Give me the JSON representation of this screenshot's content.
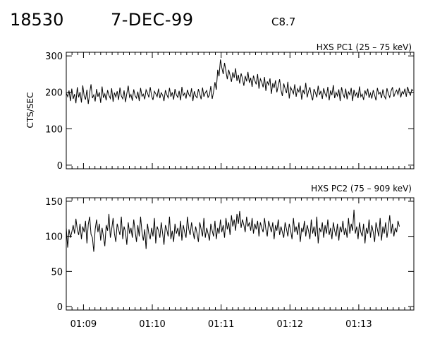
{
  "header": {
    "event_id": "18530",
    "date": "7-DEC-99",
    "goes_class": "C8.7"
  },
  "chart_data": [
    {
      "type": "line",
      "title": "HXS PC1 (25 – 75 keV)",
      "ylabel": "CTS/SEC",
      "xlabel": "",
      "ylim": [
        -10,
        310
      ],
      "xlim": [
        "01:08:45",
        "01:13:48"
      ],
      "y_ticks": [
        0,
        100,
        200,
        300
      ],
      "x_ticks": [
        "01:09",
        "01:10",
        "01:11",
        "01:12",
        "01:13"
      ],
      "x_tick_labels_shown": false,
      "grid": false,
      "series": [
        {
          "x_start": "01:08:45",
          "x_step_seconds": 1.2,
          "values": [
            198,
            188,
            205,
            176,
            210,
            182,
            195,
            170,
            214,
            186,
            201,
            172,
            219,
            190,
            180,
            207,
            168,
            198,
            222,
            184,
            193,
            175,
            209,
            188,
            200,
            171,
            216,
            185,
            196,
            178,
            206,
            192,
            183,
            211,
            174,
            199,
            187,
            203,
            179,
            213,
            190,
            182,
            205,
            173,
            197,
            218,
            186,
            194,
            177,
            208,
            191,
            184,
            202,
            176,
            212,
            189,
            195,
            181,
            207,
            198,
            186,
            214,
            190,
            179,
            203,
            196,
            188,
            210,
            184,
            199,
            192,
            176,
            206,
            194,
            185,
            212,
            188,
            200,
            180,
            209,
            193,
            186,
            204,
            178,
            215,
            191,
            198,
            183,
            207,
            194,
            188,
            211,
            176,
            203,
            190,
            185,
            209,
            195,
            181,
            213,
            188,
            199,
            205,
            186,
            193,
            217,
            182,
            201,
            228,
            207,
            262,
            244,
            290,
            268,
            250,
            281,
            258,
            236,
            262,
            247,
            229,
            255,
            240,
            266,
            231,
            248,
            224,
            252,
            238,
            218,
            245,
            230,
            256,
            226,
            240,
            215,
            246,
            232,
            222,
            250,
            210,
            237,
            228,
            214,
            242,
            204,
            230,
            220,
            238,
            196,
            225,
            212,
            233,
            200,
            218,
            236,
            206,
            190,
            224,
            210,
            198,
            229,
            183,
            214,
            205,
            196,
            222,
            188,
            210,
            201,
            218,
            180,
            207,
            195,
            226,
            186,
            203,
            214,
            191,
            178,
            209,
            199,
            186,
            218,
            193,
            204,
            182,
            211,
            196,
            188,
            215,
            178,
            205,
            192,
            220,
            184,
            200,
            190,
            208,
            176,
            214,
            196,
            186,
            210,
            181,
            201,
            193,
            212,
            176,
            207,
            190,
            199,
            184,
            216,
            188,
            195,
            179,
            205,
            193,
            210,
            185,
            198,
            183,
            206,
            192,
            178,
            212,
            195,
            200,
            184,
            208,
            190,
            182,
            211,
            196,
            186,
            204,
            214,
            188,
            199,
            206,
            194,
            212,
            186,
            202,
            196,
            210,
            188,
            215,
            200,
            192,
            208,
            204
          ]
        }
      ]
    },
    {
      "type": "line",
      "title": "HXS PC2 (75 – 909 keV)",
      "ylabel": "",
      "xlabel": "",
      "ylim": [
        -5,
        155
      ],
      "xlim": [
        "01:08:45",
        "01:13:48"
      ],
      "y_ticks": [
        0,
        50,
        100,
        150
      ],
      "x_ticks": [
        "01:09",
        "01:10",
        "01:11",
        "01:12",
        "01:13"
      ],
      "x_tick_labels_shown": true,
      "grid": false,
      "series": [
        {
          "x_start": "01:08:45",
          "x_step_seconds": 1.2,
          "values": [
            112,
            84,
            110,
            98,
            106,
            116,
            104,
            125,
            110,
            102,
            118,
            96,
            114,
            106,
            122,
            90,
            117,
            128,
            103,
            98,
            78,
            110,
            124,
            106,
            118,
            94,
            112,
            100,
            86,
            116,
            108,
            132,
            98,
            110,
            126,
            104,
            92,
            118,
            110,
            102,
            128,
            96,
            114,
            106,
            88,
            120,
            104,
            112,
            98,
            124,
            108,
            92,
            116,
            100,
            128,
            106,
            94,
            110,
            82,
            118,
            104,
            96,
            112,
            100,
            126,
            90,
            114,
            108,
            98,
            120,
            104,
            88,
            116,
            110,
            100,
            128,
            96,
            108,
            92,
            118,
            104,
            112,
            100,
            122,
            94,
            116,
            106,
            98,
            128,
            110,
            102,
            120,
            108,
            96,
            114,
            104,
            92,
            120,
            110,
            100,
            126,
            98,
            112,
            104,
            94,
            118,
            108,
            100,
            122,
            96,
            112,
            104,
            124,
            106,
            116,
            98,
            126,
            110,
            120,
            102,
            130,
            114,
            124,
            108,
            132,
            118,
            136,
            112,
            124,
            116,
            106,
            128,
            114,
            120,
            108,
            126,
            104,
            118,
            110,
            122,
            100,
            120,
            112,
            106,
            126,
            110,
            100,
            122,
            114,
            106,
            120,
            96,
            116,
            108,
            124,
            102,
            114,
            106,
            98,
            120,
            110,
            100,
            118,
            108,
            96,
            126,
            106,
            114,
            102,
            120,
            92,
            112,
            106,
            122,
            100,
            116,
            108,
            96,
            124,
            104,
            114,
            100,
            128,
            90,
            112,
            106,
            120,
            98,
            116,
            104,
            124,
            102,
            112,
            96,
            120,
            108,
            100,
            118,
            94,
            114,
            106,
            122,
            102,
            112,
            98,
            126,
            104,
            118,
            108,
            138,
            104,
            114,
            96,
            120,
            106,
            100,
            118,
            90,
            112,
            104,
            124,
            98,
            116,
            106,
            92,
            120,
            110,
            100,
            126,
            94,
            114,
            104,
            120,
            98,
            112,
            130,
            104,
            118,
            100,
            112,
            106,
            122,
            114
          ]
        }
      ]
    }
  ]
}
